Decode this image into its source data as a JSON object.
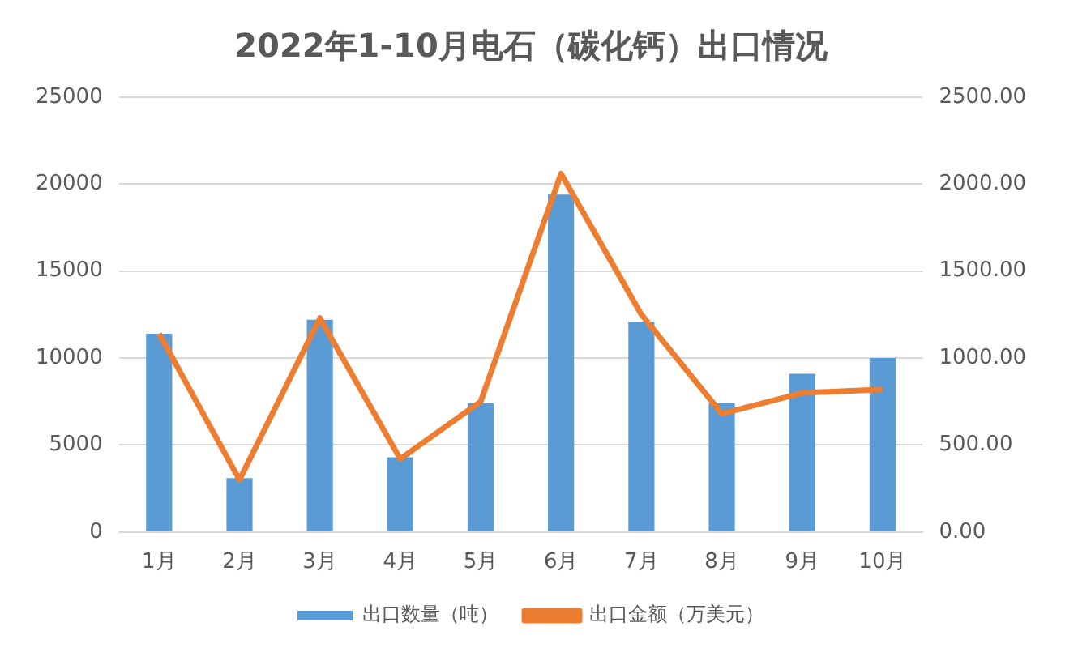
{
  "chart_data": {
    "type": "bar",
    "title": "2022年1-10月电石（碳化钙）出口情况",
    "categories": [
      "1月",
      "2月",
      "3月",
      "4月",
      "5月",
      "6月",
      "7月",
      "8月",
      "9月",
      "10月"
    ],
    "series": [
      {
        "name": "出口数量（吨）",
        "color": "#5b9bd5",
        "values": [
          11400,
          3100,
          12200,
          4300,
          7400,
          19400,
          12100,
          7400,
          9100,
          10000
        ]
      },
      {
        "name": "出口金额（万美元）",
        "type": "line",
        "axis": "y2",
        "color": "#ed7d31",
        "values": [
          1140,
          300,
          1230,
          420,
          750,
          2060,
          1250,
          680,
          800,
          820
        ]
      }
    ],
    "ylim": [
      0,
      25000
    ],
    "yticks": [
      0,
      5000,
      10000,
      15000,
      20000,
      25000
    ],
    "y2lim": [
      0,
      2500
    ],
    "y2ticks": [
      {
        "value": 0,
        "label": "0.00"
      },
      {
        "value": 500,
        "label": "500.00"
      },
      {
        "value": 1000,
        "label": "1000.00"
      },
      {
        "value": 1500,
        "label": "1500.00"
      },
      {
        "value": 2000,
        "label": "2000.00"
      },
      {
        "value": 2500,
        "label": "2500.00"
      }
    ],
    "grid": "y",
    "legend": "bottom",
    "marker": "none",
    "line_style": "solid"
  }
}
